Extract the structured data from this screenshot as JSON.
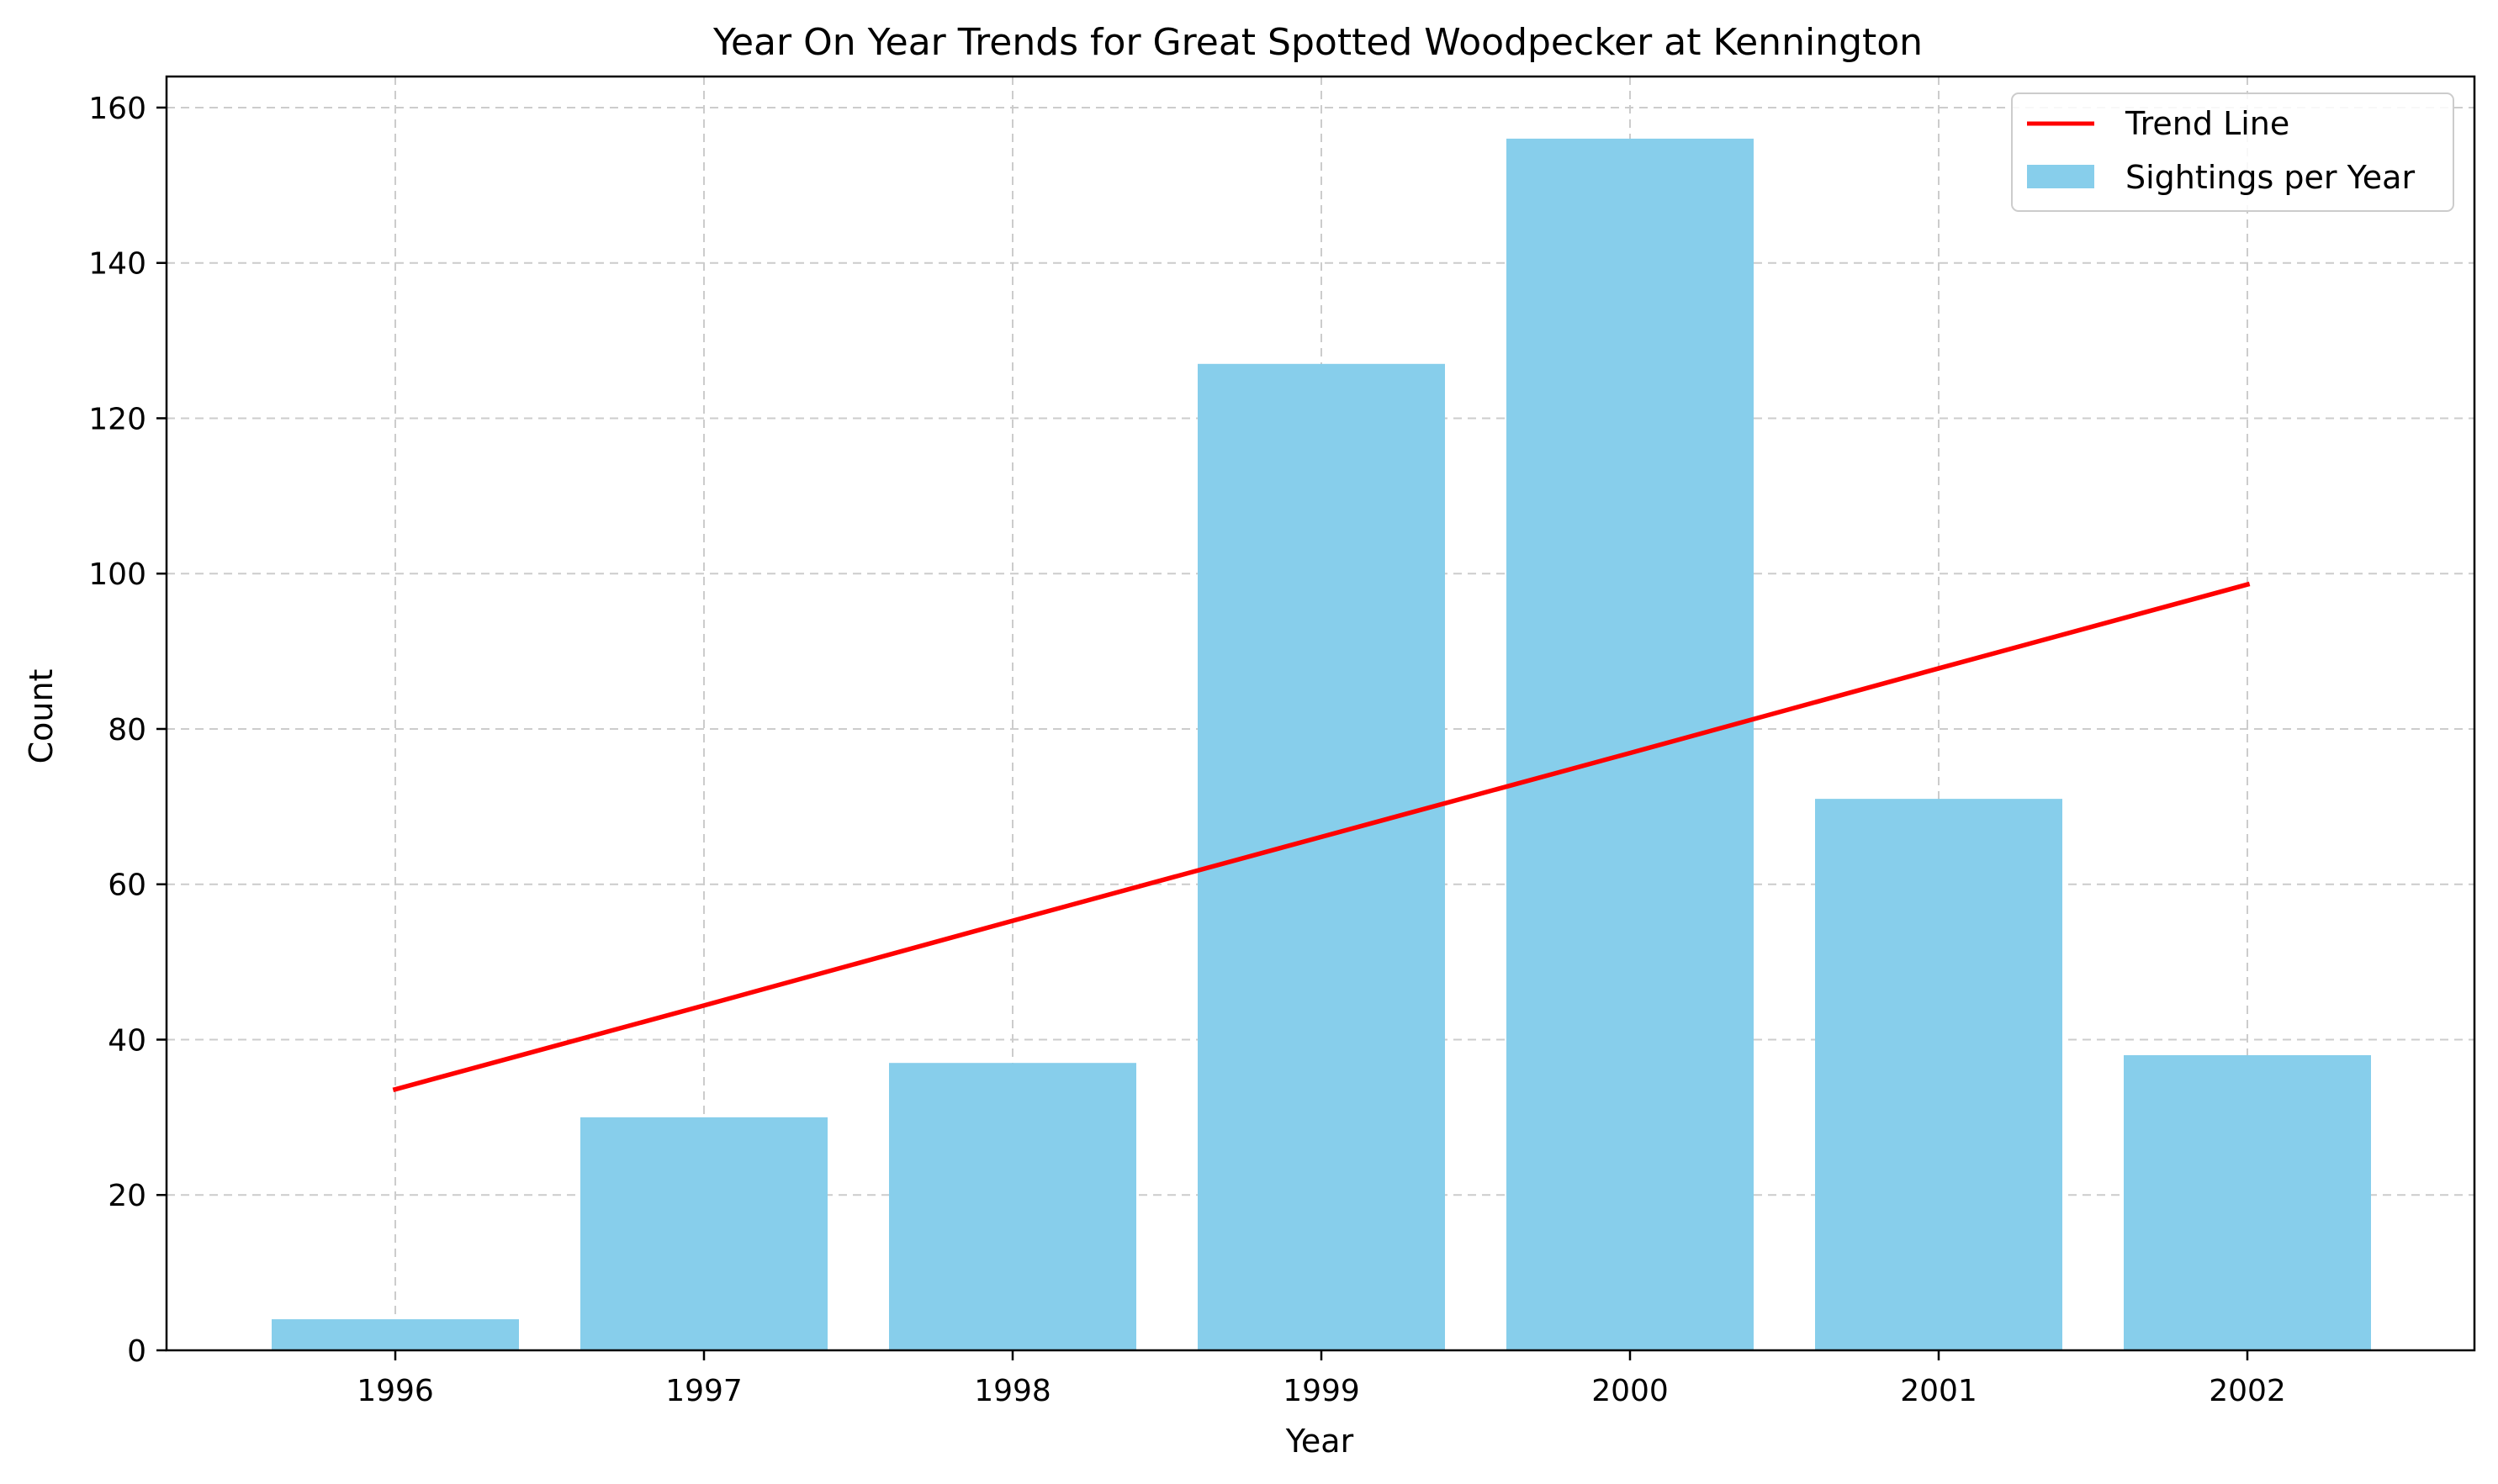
{
  "chart_data": {
    "type": "bar",
    "title": "Year On Year Trends for Great Spotted Woodpecker at Kennington",
    "xlabel": "Year",
    "ylabel": "Count",
    "categories": [
      "1996",
      "1997",
      "1998",
      "1999",
      "2000",
      "2001",
      "2002"
    ],
    "series": [
      {
        "name": "Sightings per Year",
        "type": "bar",
        "color": "#87ceeb",
        "values": [
          4,
          30,
          37,
          127,
          156,
          71,
          38
        ]
      },
      {
        "name": "Trend Line",
        "type": "line",
        "color": "#ff0000",
        "values": [
          33.6,
          44.4,
          55.3,
          66.1,
          76.9,
          87.8,
          98.6
        ]
      }
    ],
    "ylim": [
      0,
      164
    ],
    "yticks": [
      0,
      20,
      40,
      60,
      80,
      100,
      120,
      140,
      160
    ],
    "grid": true,
    "legend_position": "top-right"
  }
}
